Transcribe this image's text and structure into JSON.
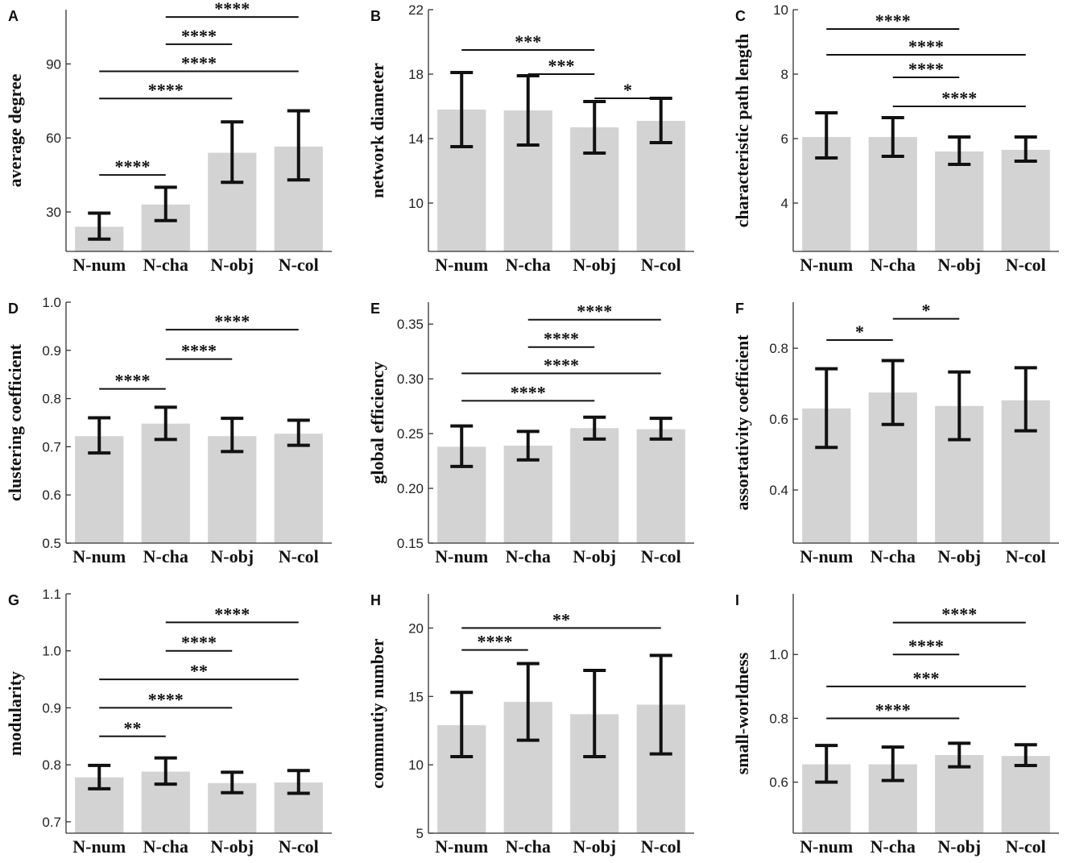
{
  "chart_data": [
    {
      "type": "bar",
      "panel": "A",
      "ylabel": "average degree",
      "categories": [
        "N-num",
        "N-cha",
        "N-obj",
        "N-col"
      ],
      "values": [
        24,
        33,
        54,
        56.5
      ],
      "lower": [
        19,
        26.5,
        42,
        43
      ],
      "upper": [
        29.5,
        40,
        66.5,
        71
      ],
      "ylim": [
        14,
        112
      ],
      "yticks": [
        30,
        60,
        90
      ],
      "yticklabels": [
        "30",
        "60",
        "90"
      ],
      "significance": [
        {
          "from": 0,
          "to": 1,
          "level": 45,
          "label": "****"
        },
        {
          "from": 0,
          "to": 2,
          "level": 76,
          "label": "****"
        },
        {
          "from": 0,
          "to": 3,
          "level": 87,
          "label": "****"
        },
        {
          "from": 1,
          "to": 2,
          "level": 98,
          "label": "****"
        },
        {
          "from": 1,
          "to": 3,
          "level": 109,
          "label": "****"
        }
      ]
    },
    {
      "type": "bar",
      "panel": "B",
      "ylabel": "network diameter",
      "categories": [
        "N-num",
        "N-cha",
        "N-obj",
        "N-col"
      ],
      "values": [
        15.8,
        15.75,
        14.7,
        15.1
      ],
      "lower": [
        13.5,
        13.6,
        13.1,
        13.75
      ],
      "upper": [
        18.1,
        17.9,
        16.3,
        16.5
      ],
      "ylim": [
        7,
        22
      ],
      "yticks": [
        10,
        14,
        18,
        22
      ],
      "yticklabels": [
        "10",
        "14",
        "18",
        "22"
      ],
      "significance": [
        {
          "from": 2,
          "to": 3,
          "level": 16.5,
          "label": "*"
        },
        {
          "from": 1,
          "to": 2,
          "level": 18.0,
          "label": "***"
        },
        {
          "from": 0,
          "to": 2,
          "level": 19.5,
          "label": "***"
        }
      ]
    },
    {
      "type": "bar",
      "panel": "C",
      "ylabel": "characteristic path length",
      "categories": [
        "N-num",
        "N-cha",
        "N-obj",
        "N-col"
      ],
      "values": [
        6.05,
        6.05,
        5.6,
        5.65
      ],
      "lower": [
        5.4,
        5.45,
        5.2,
        5.3
      ],
      "upper": [
        6.8,
        6.65,
        6.05,
        6.05
      ],
      "ylim": [
        2.5,
        10
      ],
      "yticks": [
        4,
        6,
        8,
        10
      ],
      "yticklabels": [
        "4",
        "6",
        "8",
        "10"
      ],
      "significance": [
        {
          "from": 1,
          "to": 3,
          "level": 7.0,
          "label": "****"
        },
        {
          "from": 1,
          "to": 2,
          "level": 7.9,
          "label": "****"
        },
        {
          "from": 0,
          "to": 3,
          "level": 8.6,
          "label": "****"
        },
        {
          "from": 0,
          "to": 2,
          "level": 9.4,
          "label": "****"
        }
      ]
    },
    {
      "type": "bar",
      "panel": "D",
      "ylabel": "clustering coefficient",
      "categories": [
        "N-num",
        "N-cha",
        "N-obj",
        "N-col"
      ],
      "values": [
        0.722,
        0.748,
        0.722,
        0.727
      ],
      "lower": [
        0.687,
        0.715,
        0.69,
        0.703
      ],
      "upper": [
        0.76,
        0.782,
        0.759,
        0.755
      ],
      "ylim": [
        0.5,
        1.0
      ],
      "yticks": [
        0.5,
        0.6,
        0.7,
        0.8,
        0.9,
        1.0
      ],
      "yticklabels": [
        "0.5",
        "0.6",
        "0.7",
        "0.8",
        "0.9",
        "1.0"
      ],
      "significance": [
        {
          "from": 0,
          "to": 1,
          "level": 0.82,
          "label": "****"
        },
        {
          "from": 1,
          "to": 2,
          "level": 0.882,
          "label": "****"
        },
        {
          "from": 1,
          "to": 3,
          "level": 0.943,
          "label": "****"
        }
      ]
    },
    {
      "type": "bar",
      "panel": "E",
      "ylabel": "global efficiency",
      "categories": [
        "N-num",
        "N-cha",
        "N-obj",
        "N-col"
      ],
      "values": [
        0.238,
        0.239,
        0.255,
        0.254
      ],
      "lower": [
        0.22,
        0.226,
        0.245,
        0.245
      ],
      "upper": [
        0.257,
        0.252,
        0.265,
        0.264
      ],
      "ylim": [
        0.15,
        0.37
      ],
      "yticks": [
        0.15,
        0.2,
        0.25,
        0.3,
        0.35
      ],
      "yticklabels": [
        "0.15",
        "0.20",
        "0.25",
        "0.30",
        "0.35"
      ],
      "significance": [
        {
          "from": 0,
          "to": 2,
          "level": 0.28,
          "label": "****"
        },
        {
          "from": 0,
          "to": 3,
          "level": 0.305,
          "label": "****"
        },
        {
          "from": 1,
          "to": 2,
          "level": 0.329,
          "label": "****"
        },
        {
          "from": 1,
          "to": 3,
          "level": 0.354,
          "label": "****"
        }
      ]
    },
    {
      "type": "bar",
      "panel": "F",
      "ylabel": "assortativity coefficient",
      "categories": [
        "N-num",
        "N-cha",
        "N-obj",
        "N-col"
      ],
      "values": [
        0.63,
        0.675,
        0.637,
        0.653
      ],
      "lower": [
        0.52,
        0.585,
        0.542,
        0.567
      ],
      "upper": [
        0.742,
        0.765,
        0.733,
        0.745
      ],
      "ylim": [
        0.25,
        0.93
      ],
      "yticks": [
        0.4,
        0.6,
        0.8
      ],
      "yticklabels": [
        "0.4",
        "0.6",
        "0.8"
      ],
      "significance": [
        {
          "from": 0,
          "to": 1,
          "level": 0.823,
          "label": "*"
        },
        {
          "from": 1,
          "to": 2,
          "level": 0.883,
          "label": "*"
        }
      ]
    },
    {
      "type": "bar",
      "panel": "G",
      "ylabel": "modularity",
      "categories": [
        "N-num",
        "N-cha",
        "N-obj",
        "N-col"
      ],
      "values": [
        0.778,
        0.788,
        0.768,
        0.769
      ],
      "lower": [
        0.758,
        0.766,
        0.751,
        0.75
      ],
      "upper": [
        0.799,
        0.812,
        0.787,
        0.79
      ],
      "ylim": [
        0.68,
        1.1
      ],
      "yticks": [
        0.7,
        0.8,
        0.9,
        1.0,
        1.1
      ],
      "yticklabels": [
        "0.7",
        "0.8",
        "0.9",
        "1.0",
        "1.1"
      ],
      "significance": [
        {
          "from": 0,
          "to": 1,
          "level": 0.85,
          "label": "**"
        },
        {
          "from": 0,
          "to": 2,
          "level": 0.9,
          "label": "****"
        },
        {
          "from": 0,
          "to": 3,
          "level": 0.95,
          "label": "**"
        },
        {
          "from": 1,
          "to": 2,
          "level": 1.0,
          "label": "****"
        },
        {
          "from": 1,
          "to": 3,
          "level": 1.05,
          "label": "****"
        }
      ]
    },
    {
      "type": "bar",
      "panel": "H",
      "ylabel": "commnutiy number",
      "categories": [
        "N-num",
        "N-cha",
        "N-obj",
        "N-col"
      ],
      "values": [
        12.9,
        14.6,
        13.7,
        14.4
      ],
      "lower": [
        10.6,
        11.8,
        10.6,
        10.8
      ],
      "upper": [
        15.3,
        17.4,
        16.9,
        18.0
      ],
      "ylim": [
        5,
        22.5
      ],
      "yticks": [
        5,
        10,
        15,
        20
      ],
      "yticklabels": [
        "5",
        "10",
        "15",
        "20"
      ],
      "significance": [
        {
          "from": 0,
          "to": 1,
          "level": 18.4,
          "label": "****"
        },
        {
          "from": 0,
          "to": 3,
          "level": 20.0,
          "label": "**"
        }
      ]
    },
    {
      "type": "bar",
      "panel": "I",
      "ylabel": "small-worldness",
      "categories": [
        "N-num",
        "N-cha",
        "N-obj",
        "N-col"
      ],
      "values": [
        0.656,
        0.656,
        0.685,
        0.682
      ],
      "lower": [
        0.6,
        0.605,
        0.648,
        0.652
      ],
      "upper": [
        0.715,
        0.71,
        0.722,
        0.717
      ],
      "ylim": [
        0.44,
        1.19
      ],
      "yticks": [
        0.6,
        0.8,
        1.0
      ],
      "yticklabels": [
        "0.6",
        "0.8",
        "1.0"
      ],
      "significance": [
        {
          "from": 0,
          "to": 2,
          "level": 0.8,
          "label": "****"
        },
        {
          "from": 0,
          "to": 3,
          "level": 0.9,
          "label": "***"
        },
        {
          "from": 1,
          "to": 2,
          "level": 1.0,
          "label": "****"
        },
        {
          "from": 1,
          "to": 3,
          "level": 1.1,
          "label": "****"
        }
      ]
    }
  ]
}
